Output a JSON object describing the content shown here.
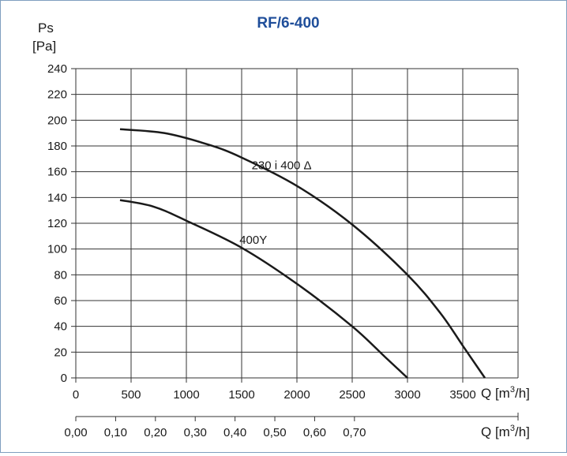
{
  "chart_data": {
    "type": "line",
    "title": "RF/6-400",
    "ylabel_line1": "Ps",
    "ylabel_line2": "[Pa]",
    "xlabel": {
      "text": "Q [m",
      "sup": "3",
      "tail": "/h]"
    },
    "x2label": {
      "text": "Q [m",
      "sup": "3",
      "tail": "/h]"
    },
    "xlim": [
      0,
      4000
    ],
    "ylim": [
      0,
      240
    ],
    "x_ticks": [
      "0",
      "500",
      "1000",
      "1500",
      "2000",
      "2500",
      "3000",
      "3500"
    ],
    "x_tick_values": [
      0,
      500,
      1000,
      1500,
      2000,
      2500,
      3000,
      3500
    ],
    "y_ticks": [
      "0",
      "20",
      "40",
      "60",
      "80",
      "100",
      "120",
      "140",
      "160",
      "180",
      "200",
      "220",
      "240"
    ],
    "y_tick_values": [
      0,
      20,
      40,
      60,
      80,
      100,
      120,
      140,
      160,
      180,
      200,
      220,
      240
    ],
    "x2_ticks": [
      "0,00",
      "0,10",
      "0,20",
      "0,30",
      "0,40",
      "0,50",
      "0,60",
      "0,70"
    ],
    "x2_tick_values": [
      0,
      0.1,
      0.2,
      0.3,
      0.4,
      0.5,
      0.6,
      0.7
    ],
    "x2lim": [
      0,
      1.111
    ],
    "grid": true,
    "series": [
      {
        "name": "230 i 400 Δ",
        "x": [
          400,
          800,
          1200,
          1500,
          2000,
          2500,
          3000,
          3300,
          3500,
          3700
        ],
        "y": [
          193,
          190,
          181,
          171,
          149,
          119,
          80,
          50,
          25,
          0
        ]
      },
      {
        "name": "400Y",
        "x": [
          400,
          700,
          1000,
          1500,
          2000,
          2500,
          2800,
          3000
        ],
        "y": [
          138,
          133,
          122,
          101,
          73,
          40,
          16,
          0
        ]
      }
    ]
  }
}
